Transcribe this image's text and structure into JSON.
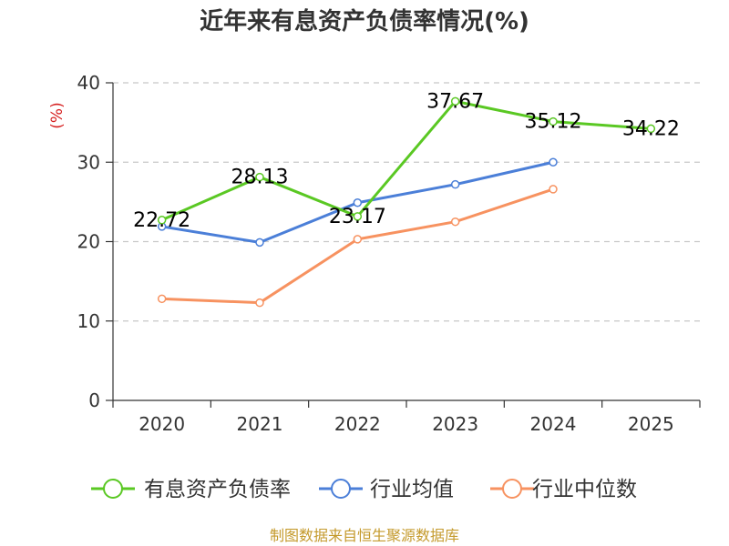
{
  "chart_data": {
    "type": "line",
    "title": "近年来有息资产负债率情况(%)",
    "ylabel": "(%)",
    "ylim": [
      0,
      40
    ],
    "y_ticks": [
      0,
      10,
      20,
      30,
      40
    ],
    "categories": [
      "2020",
      "2021",
      "2022",
      "2023",
      "2024",
      "2025"
    ],
    "grid": true,
    "legend_position": "bottom",
    "series": [
      {
        "name": "有息资产负债率",
        "color": "#5ac823",
        "values": [
          22.72,
          28.13,
          23.17,
          37.67,
          35.12,
          34.22
        ],
        "data_labels": [
          "22.72",
          "28.13",
          "23.17",
          "37.67",
          "35.12",
          "34.22"
        ]
      },
      {
        "name": "行业均值",
        "color": "#4b7fd8",
        "values": [
          21.9,
          19.9,
          24.9,
          27.2,
          30.0,
          null
        ]
      },
      {
        "name": "行业中位数",
        "color": "#f79260",
        "values": [
          12.8,
          12.3,
          20.3,
          22.5,
          26.6,
          null
        ]
      }
    ]
  },
  "footer": {
    "source": "制图数据来自恒生聚源数据库",
    "source_color": "#c49a2c"
  },
  "unit_color": "#d62020"
}
